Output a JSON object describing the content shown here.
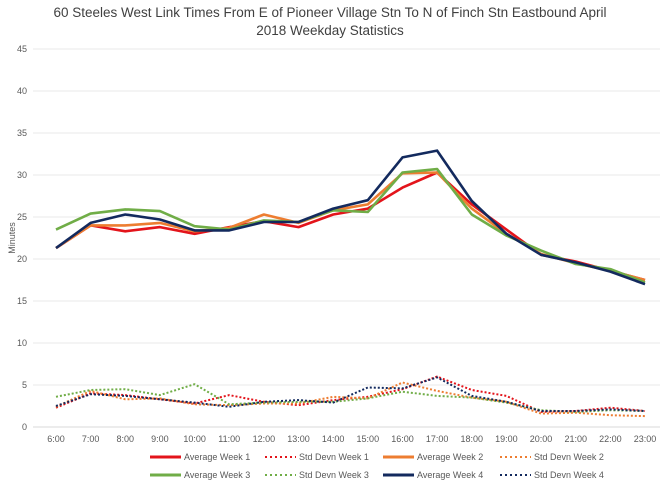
{
  "chart_data": {
    "type": "line",
    "title_line1": "60 Steeles West Link Times From E of Pioneer Village Stn To N of Finch Stn Eastbound April",
    "title_line2": "2018 Weekday Statistics",
    "xlabel": "",
    "ylabel": "Minutes",
    "ylim": [
      0,
      45
    ],
    "yticks": [
      0,
      5,
      10,
      15,
      20,
      25,
      30,
      35,
      40,
      45
    ],
    "grid": true,
    "legend_position": "bottom",
    "categories": [
      "6:00",
      "7:00",
      "8:00",
      "9:00",
      "10:00",
      "11:00",
      "12:00",
      "13:00",
      "14:00",
      "15:00",
      "16:00",
      "17:00",
      "18:00",
      "19:00",
      "20:00",
      "21:00",
      "22:00",
      "23:00"
    ],
    "series": [
      {
        "name": "Average Week 1",
        "color": "#e3141b",
        "style": "solid",
        "values": [
          21.3,
          24.0,
          23.3,
          23.8,
          23.0,
          23.8,
          24.5,
          23.8,
          25.3,
          26.0,
          28.5,
          30.3,
          26.5,
          23.5,
          20.5,
          19.7,
          18.6,
          17.5
        ]
      },
      {
        "name": "Std Devn Week 1",
        "color": "#e3141b",
        "style": "dotted",
        "values": [
          2.3,
          4.0,
          3.8,
          3.3,
          2.8,
          3.8,
          3.0,
          2.6,
          3.2,
          3.6,
          4.5,
          6.0,
          4.4,
          3.7,
          1.8,
          1.9,
          2.3,
          1.9
        ]
      },
      {
        "name": "Average Week 2",
        "color": "#ed7d31",
        "style": "solid",
        "values": [
          21.3,
          24.0,
          24.0,
          24.3,
          23.3,
          23.7,
          25.3,
          24.3,
          25.8,
          26.5,
          30.2,
          30.3,
          26.0,
          23.0,
          20.6,
          19.5,
          18.6,
          17.5
        ]
      },
      {
        "name": "Std Devn Week 2",
        "color": "#ed7d31",
        "style": "dotted",
        "values": [
          2.4,
          4.3,
          3.3,
          3.4,
          2.7,
          2.6,
          2.8,
          2.8,
          3.6,
          3.4,
          5.3,
          4.3,
          3.5,
          3.0,
          1.6,
          1.7,
          1.4,
          1.3
        ]
      },
      {
        "name": "Average Week 3",
        "color": "#70ad47",
        "style": "solid",
        "values": [
          23.5,
          25.4,
          25.9,
          25.7,
          23.9,
          23.5,
          24.6,
          24.4,
          25.8,
          25.6,
          30.3,
          30.7,
          25.3,
          22.8,
          21.0,
          19.4,
          18.8,
          17.2
        ]
      },
      {
        "name": "Std Devn Week 3",
        "color": "#70ad47",
        "style": "dotted",
        "values": [
          3.6,
          4.4,
          4.5,
          3.8,
          5.1,
          2.7,
          2.9,
          3.0,
          3.0,
          3.4,
          4.2,
          3.7,
          3.5,
          2.9,
          2.0,
          1.8,
          2.0,
          1.9
        ]
      },
      {
        "name": "Average Week 4",
        "color": "#132a5e",
        "style": "solid",
        "values": [
          21.3,
          24.3,
          25.3,
          24.7,
          23.4,
          23.4,
          24.4,
          24.4,
          26.0,
          27.0,
          32.1,
          32.9,
          26.9,
          23.0,
          20.5,
          19.6,
          18.5,
          17.0
        ]
      },
      {
        "name": "Std Devn Week 4",
        "color": "#132a5e",
        "style": "dotted",
        "values": [
          2.5,
          3.9,
          3.7,
          3.3,
          2.9,
          2.4,
          3.0,
          3.2,
          2.9,
          4.7,
          4.6,
          5.9,
          3.7,
          3.0,
          1.9,
          1.9,
          2.1,
          1.9
        ]
      }
    ]
  }
}
